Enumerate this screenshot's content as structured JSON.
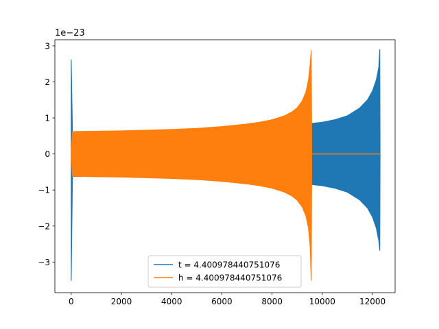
{
  "chart_data": {
    "type": "line",
    "title": "",
    "xlabel": "",
    "ylabel": "",
    "y_scale_label": "1e−23",
    "xlim": [
      -650,
      12900
    ],
    "ylim": [
      -3.85,
      3.17
    ],
    "x_ticks": [
      {
        "value": 0,
        "label": "0"
      },
      {
        "value": 2000,
        "label": "2000"
      },
      {
        "value": 4000,
        "label": "4000"
      },
      {
        "value": 6000,
        "label": "6000"
      },
      {
        "value": 8000,
        "label": "8000"
      },
      {
        "value": 10000,
        "label": "10000"
      },
      {
        "value": 12000,
        "label": "12000"
      }
    ],
    "y_ticks": [
      {
        "value": 3,
        "label": "3"
      },
      {
        "value": 2,
        "label": "2"
      },
      {
        "value": 1,
        "label": "1"
      },
      {
        "value": 0,
        "label": "0"
      },
      {
        "value": -1,
        "label": "−1"
      },
      {
        "value": -2,
        "label": "−2"
      },
      {
        "value": -3,
        "label": "−3"
      }
    ],
    "grid": false,
    "legend_position": "bottom-center",
    "series": [
      {
        "name": "t = 4.400978440751076",
        "color": "#1f77b4",
        "envelope": {
          "x": [
            0,
            50,
            2000,
            4000,
            6000,
            7000,
            8000,
            8500,
            9000,
            9300,
            9600,
            10000,
            10500,
            11000,
            11500,
            11800,
            12000,
            12150,
            12250,
            12290,
            12300
          ],
          "upper": [
            2.62,
            0.62,
            0.63,
            0.66,
            0.7,
            0.72,
            0.76,
            0.78,
            0.81,
            0.83,
            0.85,
            0.88,
            0.95,
            1.06,
            1.28,
            1.5,
            1.75,
            2.05,
            2.4,
            2.9,
            0.0
          ],
          "lower": [
            -3.52,
            -0.62,
            -0.63,
            -0.66,
            -0.7,
            -0.72,
            -0.76,
            -0.78,
            -0.81,
            -0.83,
            -0.85,
            -0.88,
            -0.95,
            -1.06,
            -1.28,
            -1.5,
            -1.75,
            -2.05,
            -2.4,
            -2.68,
            0.0
          ]
        }
      },
      {
        "name": "h = 4.400978440751076",
        "color": "#ff7f0e",
        "envelope": {
          "x": [
            0,
            50,
            1000,
            2000,
            3000,
            4000,
            5000,
            6000,
            7000,
            7500,
            8000,
            8500,
            8800,
            9000,
            9200,
            9350,
            9450,
            9520,
            9560,
            9580
          ],
          "upper": [
            0.0,
            0.62,
            0.63,
            0.64,
            0.66,
            0.68,
            0.71,
            0.76,
            0.83,
            0.88,
            0.95,
            1.06,
            1.17,
            1.28,
            1.47,
            1.72,
            2.05,
            2.5,
            2.88,
            0.02
          ],
          "lower": [
            0.0,
            -0.62,
            -0.63,
            -0.64,
            -0.66,
            -0.68,
            -0.71,
            -0.76,
            -0.83,
            -0.88,
            -0.95,
            -1.06,
            -1.17,
            -1.28,
            -1.47,
            -1.72,
            -2.05,
            -2.6,
            -3.52,
            -0.02
          ]
        },
        "flat_segment": {
          "x": [
            9580,
            12300
          ],
          "y": 0
        }
      }
    ]
  }
}
